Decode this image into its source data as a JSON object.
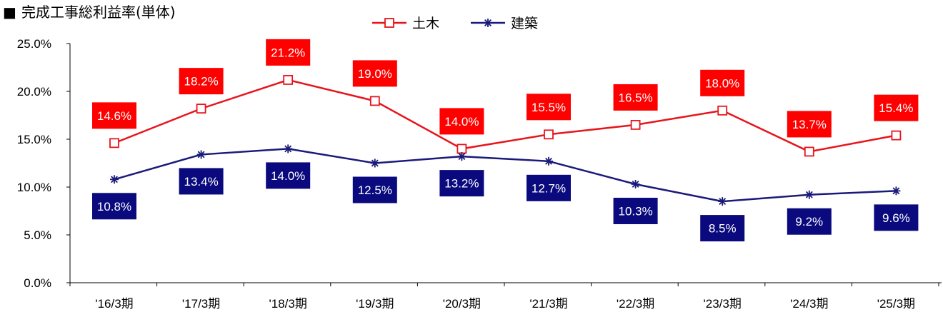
{
  "chart_data": {
    "type": "line",
    "title": "完成工事総利益率(単体)",
    "title_marker": "■",
    "categories": [
      "'16/3期",
      "'17/3期",
      "'18/3期",
      "'19/3期",
      "'20/3期",
      "'21/3期",
      "'22/3期",
      "'23/3期",
      "'24/3期",
      "'25/3期"
    ],
    "ylim": [
      0,
      25
    ],
    "ytick_values": [
      0,
      5,
      10,
      15,
      20,
      25
    ],
    "ytick_labels": [
      "0.0%",
      "5.0%",
      "10.0%",
      "15.0%",
      "20.0%",
      "25.0%"
    ],
    "grid": false,
    "legend_position": "top-center",
    "series": [
      {
        "name": "土木",
        "color": "#e8141c",
        "label_bg": "#ff0000",
        "marker": "square",
        "label_position": "above",
        "values": [
          14.6,
          18.2,
          21.2,
          19.0,
          14.0,
          15.5,
          16.5,
          18.0,
          13.7,
          15.4
        ],
        "labels": [
          "14.6%",
          "18.2%",
          "21.2%",
          "19.0%",
          "14.0%",
          "15.5%",
          "16.5%",
          "18.0%",
          "13.7%",
          "15.4%"
        ]
      },
      {
        "name": "建築",
        "color": "#1a1a7a",
        "label_bg": "#0a0a7e",
        "marker": "asterisk",
        "label_position": "below",
        "values": [
          10.8,
          13.4,
          14.0,
          12.5,
          13.2,
          12.7,
          10.3,
          8.5,
          9.2,
          9.6
        ],
        "labels": [
          "10.8%",
          "13.4%",
          "14.0%",
          "12.5%",
          "13.2%",
          "12.7%",
          "10.3%",
          "8.5%",
          "9.2%",
          "9.6%"
        ]
      }
    ]
  }
}
